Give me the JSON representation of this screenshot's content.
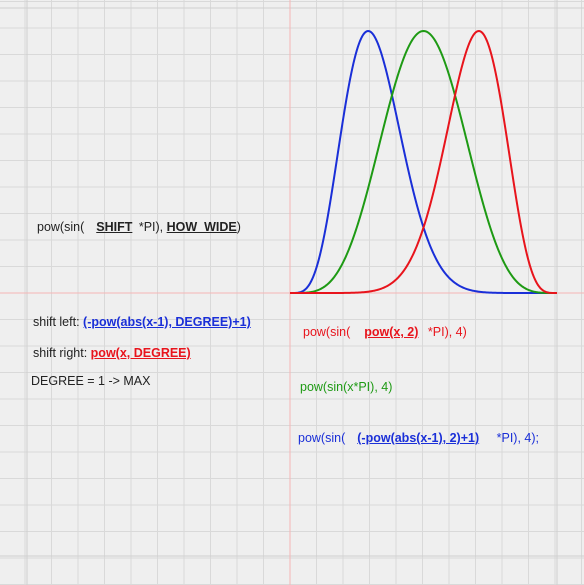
{
  "colors": {
    "background": "#efefef",
    "grid_minor": "#d9d9d9",
    "grid_major": "#cfcfcf",
    "axis": "#f4b6b6",
    "text": "#222222",
    "red": "#e8141c",
    "green": "#1e9a14",
    "blue": "#1a2fd8"
  },
  "labels": {
    "main_formula": {
      "a": "pow(sin(",
      "shift": "SHIFT",
      "b": " *PI), ",
      "how_wide": "HOW_WIDE",
      "c": ")"
    },
    "shift_left": {
      "prefix": "shift left: ",
      "expr": "(-pow(abs(x-1), DEGREE)+1)"
    },
    "shift_right": {
      "prefix": "shift right: ",
      "expr": "pow(x, DEGREE)"
    },
    "degree": "DEGREE = 1 -> MAX",
    "red_formula": {
      "a": "pow(sin(",
      "expr": "pow(x, 2)",
      "b": " *PI), 4)"
    },
    "green_formula": "pow(sin(x*PI), 4)",
    "blue_formula": {
      "a": "pow(sin(",
      "expr": "(-pow(abs(x-1), 2)+1)",
      "b": " *PI), 4);"
    }
  },
  "chart_data": {
    "type": "line",
    "x_range": [
      0,
      1
    ],
    "y_range": [
      0,
      1
    ],
    "grid": true,
    "series": [
      {
        "id": "blue",
        "color": "#1a2fd8",
        "formula": "pow(sin((-pow(abs(x-1), 2)+1)*PI), 4)",
        "exponent": 4,
        "degree": 2,
        "shift": "left"
      },
      {
        "id": "green",
        "color": "#1e9a14",
        "formula": "pow(sin(x*PI), 4)",
        "exponent": 4,
        "degree": 1,
        "shift": "none"
      },
      {
        "id": "red",
        "color": "#e8141c",
        "formula": "pow(sin(pow(x, 2)*PI), 4)",
        "exponent": 4,
        "degree": 2,
        "shift": "right"
      }
    ]
  }
}
